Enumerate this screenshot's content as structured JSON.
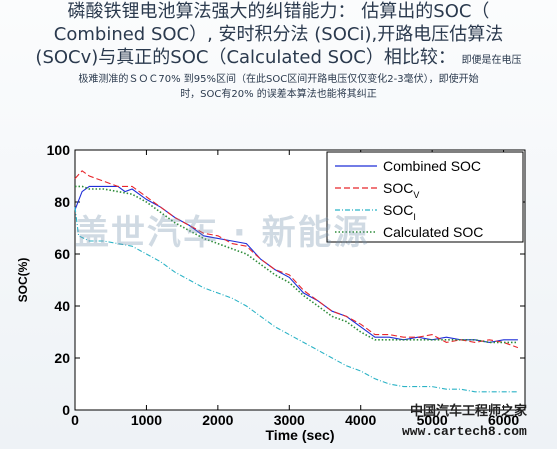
{
  "heading": {
    "line1": "磷酸铁锂电池算法强大的纠错能力： 估算出的SOC（",
    "line2": "Combined SOC）, 安时积分法 (SOCi),开路电压估算法",
    "line3": "(SOCv)与真正的SOC（Calculated SOC）相比较：",
    "note_inline": "即便是在电压",
    "note_line2": "极难测准的ＳＯＣ70% 到95%区间（在此SOC区间开路电压仅仅变化2-3毫伏），即使开始",
    "note_line3": "时，SOC有20% 的误差本算法也能将其纠正"
  },
  "watermark": "盖世汽车 · 新能源",
  "site_mark": "中国汽车工程师之家",
  "site_url": "www.cartech8.com",
  "colors": {
    "combined": "#1f2fd8",
    "socv": "#e8262b",
    "soci": "#2bb3c6",
    "calculated": "#2e8c3a"
  },
  "chart_data": {
    "type": "line",
    "xlabel": "Time (sec)",
    "ylabel": "SOC(%)",
    "xlim": [
      0,
      6300
    ],
    "ylim": [
      0,
      100
    ],
    "xticks": [
      0,
      1000,
      2000,
      3000,
      4000,
      5000,
      6000
    ],
    "yticks": [
      0,
      20,
      40,
      60,
      80,
      100
    ],
    "legend_position": "top-right",
    "grid": false,
    "series": [
      {
        "name": "Combined SOC",
        "style": "solid",
        "x": [
          0,
          100,
          200,
          400,
          600,
          700,
          800,
          1000,
          1200,
          1400,
          1600,
          1800,
          2000,
          2200,
          2400,
          2600,
          2800,
          3000,
          3200,
          3400,
          3600,
          3800,
          4000,
          4200,
          4400,
          4600,
          4800,
          5000,
          5200,
          5400,
          5600,
          5800,
          6000,
          6200
        ],
        "y": [
          77,
          84,
          86,
          86,
          86,
          84,
          85,
          81,
          78,
          74,
          71,
          67,
          66,
          65,
          64,
          58,
          54,
          51,
          45,
          42,
          38,
          36,
          32,
          28,
          28,
          27,
          28,
          27,
          28,
          27,
          27,
          26,
          27,
          27
        ]
      },
      {
        "name": "SOCV",
        "style": "dashed",
        "x": [
          0,
          100,
          200,
          400,
          600,
          800,
          1000,
          1200,
          1400,
          1600,
          1800,
          2000,
          2200,
          2400,
          2600,
          2800,
          3000,
          3200,
          3400,
          3600,
          3800,
          4000,
          4200,
          4400,
          4600,
          4800,
          5000,
          5200,
          5400,
          5600,
          5800,
          6000,
          6200
        ],
        "y": [
          89,
          92,
          90,
          88,
          86,
          86,
          82,
          78,
          74,
          71,
          68,
          67,
          64,
          63,
          58,
          54,
          52,
          46,
          42,
          38,
          36,
          33,
          29,
          29,
          28,
          28,
          29,
          26,
          27,
          26,
          27,
          26,
          24
        ]
      },
      {
        "name": "SOCI",
        "style": "dashdot",
        "x": [
          0,
          50,
          200,
          400,
          600,
          800,
          1000,
          1200,
          1400,
          1600,
          1800,
          2000,
          2200,
          2400,
          2600,
          2800,
          3000,
          3200,
          3400,
          3600,
          3800,
          4000,
          4200,
          4400,
          4600,
          4800,
          5000,
          5200,
          5400,
          5600,
          5800,
          6000,
          6200
        ],
        "y": [
          78,
          67,
          65,
          65,
          64,
          63,
          60,
          57,
          53,
          50,
          47,
          45,
          43,
          40,
          36,
          32,
          29,
          26,
          23,
          20,
          17,
          15,
          12,
          10,
          9,
          9,
          9,
          8,
          8,
          7,
          7,
          7,
          7
        ]
      },
      {
        "name": "Calculated SOC",
        "style": "dotted",
        "x": [
          0,
          100,
          200,
          400,
          600,
          800,
          1000,
          1200,
          1400,
          1600,
          1800,
          2000,
          2200,
          2400,
          2600,
          2800,
          3000,
          3200,
          3400,
          3600,
          3800,
          4000,
          4200,
          4400,
          4600,
          4800,
          5000,
          5200,
          5400,
          5600,
          5800,
          6000,
          6200
        ],
        "y": [
          86,
          86,
          85,
          85,
          84,
          83,
          80,
          76,
          72,
          69,
          66,
          64,
          62,
          60,
          56,
          52,
          49,
          44,
          40,
          36,
          34,
          30,
          27,
          27,
          27,
          27,
          27,
          27,
          27,
          27,
          26,
          26,
          26
        ]
      }
    ],
    "legend_labels": [
      {
        "main": "Combined SOC",
        "sub": ""
      },
      {
        "main": "SOC",
        "sub": "V"
      },
      {
        "main": "SOC",
        "sub": "I"
      },
      {
        "main": "Calculated SOC",
        "sub": ""
      }
    ]
  }
}
